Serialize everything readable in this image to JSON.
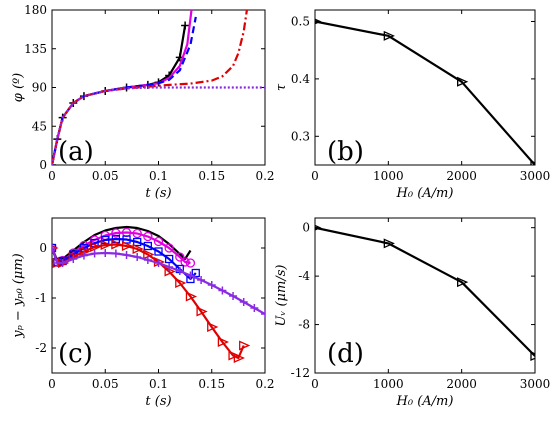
{
  "chart_data": [
    {
      "panel": "a",
      "type": "line",
      "panel_label": "(a)",
      "xlabel": "t (s)",
      "ylabel": "φ (º)",
      "xlim": [
        0,
        0.2
      ],
      "ylim": [
        0,
        180
      ],
      "xticks": [
        "0",
        "0.05",
        "0.1",
        "0.15",
        "0.2"
      ],
      "yticks": [
        "0",
        "45",
        "90",
        "135",
        "180"
      ],
      "series": [
        {
          "style": "solid",
          "color": "#000000",
          "marker": "+",
          "x": [
            0,
            0.005,
            0.01,
            0.02,
            0.03,
            0.05,
            0.07,
            0.09,
            0.1,
            0.11,
            0.12,
            0.125
          ],
          "y": [
            0,
            30,
            55,
            72,
            80,
            86,
            90,
            93,
            96,
            104,
            125,
            162
          ]
        },
        {
          "style": "solid",
          "color": "#e000e0",
          "x": [
            0,
            0.005,
            0.01,
            0.02,
            0.03,
            0.05,
            0.07,
            0.09,
            0.1,
            0.11,
            0.12,
            0.127,
            0.131
          ],
          "y": [
            0,
            30,
            55,
            72,
            80,
            86,
            90,
            93,
            95,
            101,
            115,
            140,
            180
          ]
        },
        {
          "style": "dashed",
          "color": "#0000ff",
          "x": [
            0,
            0.005,
            0.01,
            0.02,
            0.03,
            0.05,
            0.07,
            0.09,
            0.1,
            0.11,
            0.12,
            0.13,
            0.135
          ],
          "y": [
            0,
            30,
            55,
            72,
            80,
            86,
            90,
            93,
            95,
            99,
            110,
            140,
            172
          ]
        },
        {
          "style": "dashdot",
          "color": "#e00000",
          "x": [
            0,
            0.005,
            0.01,
            0.02,
            0.03,
            0.05,
            0.07,
            0.09,
            0.11,
            0.13,
            0.15,
            0.16,
            0.17,
            0.175,
            0.18,
            0.183
          ],
          "y": [
            0,
            30,
            55,
            72,
            80,
            86,
            89,
            91,
            93,
            94.5,
            98,
            103,
            115,
            130,
            155,
            180
          ]
        },
        {
          "style": "dotted",
          "color": "#8a2be2",
          "x": [
            0,
            0.005,
            0.01,
            0.02,
            0.03,
            0.05,
            0.07,
            0.09,
            0.1,
            0.15,
            0.2
          ],
          "y": [
            0,
            30,
            55,
            72,
            80,
            86,
            89,
            90,
            90,
            90,
            90
          ]
        }
      ]
    },
    {
      "panel": "b",
      "type": "line",
      "panel_label": "(b)",
      "xlabel": "H₀ (A/m)",
      "ylabel": "τ",
      "xlim": [
        0,
        3000
      ],
      "ylim": [
        0.25,
        0.52
      ],
      "xticks": [
        "0",
        "1000",
        "2000",
        "3000"
      ],
      "yticks": [
        "0.3",
        "0.4",
        "0.5"
      ],
      "series": [
        {
          "color": "#000000",
          "marker": "triangle-right",
          "x": [
            0,
            1000,
            2000,
            3000
          ],
          "y": [
            0.5,
            0.475,
            0.395,
            0.25
          ]
        }
      ]
    },
    {
      "panel": "c",
      "type": "line",
      "panel_label": "(c)",
      "xlabel": "t (s)",
      "ylabel": "yₚ − yₚ₀ (μm)",
      "xlim": [
        0,
        0.2
      ],
      "ylim": [
        -2.5,
        0.6
      ],
      "xticks": [
        "0",
        "0.05",
        "0.1",
        "0.15",
        "0.2"
      ],
      "yticks": [
        "0",
        "-1",
        "-2"
      ],
      "series": [
        {
          "color": "#000000",
          "x": [
            0,
            0.005,
            0.01,
            0.02,
            0.03,
            0.04,
            0.05,
            0.06,
            0.07,
            0.08,
            0.09,
            0.1,
            0.11,
            0.12,
            0.125,
            0.13
          ],
          "y": [
            0,
            -0.25,
            -0.22,
            -0.05,
            0.12,
            0.26,
            0.35,
            0.4,
            0.42,
            0.4,
            0.34,
            0.24,
            0.08,
            -0.12,
            -0.22,
            -0.05
          ]
        },
        {
          "color": "#e000e0",
          "marker": "circle",
          "x": [
            0,
            0.005,
            0.01,
            0.02,
            0.03,
            0.04,
            0.05,
            0.06,
            0.07,
            0.08,
            0.09,
            0.1,
            0.11,
            0.12,
            0.125,
            0.13
          ],
          "y": [
            0,
            -0.28,
            -0.25,
            -0.1,
            0.05,
            0.16,
            0.25,
            0.3,
            0.31,
            0.29,
            0.23,
            0.13,
            0.0,
            -0.18,
            -0.28,
            -0.3
          ]
        },
        {
          "color": "#0000ff",
          "marker": "square",
          "x": [
            0,
            0.005,
            0.01,
            0.02,
            0.03,
            0.04,
            0.05,
            0.06,
            0.07,
            0.08,
            0.09,
            0.1,
            0.11,
            0.12,
            0.13,
            0.135
          ],
          "y": [
            0,
            -0.28,
            -0.26,
            -0.13,
            0.0,
            0.1,
            0.16,
            0.18,
            0.17,
            0.12,
            0.04,
            -0.07,
            -0.22,
            -0.42,
            -0.62,
            -0.5
          ]
        },
        {
          "color": "#e00000",
          "marker": "triangle-right",
          "x": [
            0,
            0.005,
            0.01,
            0.02,
            0.03,
            0.04,
            0.05,
            0.06,
            0.07,
            0.08,
            0.09,
            0.1,
            0.11,
            0.12,
            0.13,
            0.14,
            0.15,
            0.16,
            0.17,
            0.175,
            0.18
          ],
          "y": [
            0,
            -0.3,
            -0.3,
            -0.18,
            -0.07,
            0.02,
            0.06,
            0.07,
            0.04,
            -0.02,
            -0.13,
            -0.28,
            -0.47,
            -0.7,
            -0.97,
            -1.27,
            -1.58,
            -1.88,
            -2.15,
            -2.2,
            -1.95
          ]
        },
        {
          "color": "#8a2be2",
          "marker": "+",
          "x": [
            0,
            0.005,
            0.01,
            0.02,
            0.03,
            0.04,
            0.05,
            0.06,
            0.07,
            0.08,
            0.09,
            0.1,
            0.11,
            0.12,
            0.13,
            0.14,
            0.15,
            0.16,
            0.17,
            0.18,
            0.19,
            0.2
          ],
          "y": [
            0,
            -0.3,
            -0.3,
            -0.22,
            -0.15,
            -0.11,
            -0.1,
            -0.11,
            -0.14,
            -0.18,
            -0.24,
            -0.3,
            -0.38,
            -0.46,
            -0.55,
            -0.64,
            -0.74,
            -0.85,
            -0.96,
            -1.08,
            -1.2,
            -1.32
          ]
        }
      ]
    },
    {
      "panel": "d",
      "type": "line",
      "panel_label": "(d)",
      "xlabel": "H₀ (A/m)",
      "ylabel": "Uᵥ (μm/s)",
      "xlim": [
        0,
        3000
      ],
      "ylim": [
        -12,
        0.8
      ],
      "xticks": [
        "0",
        "1000",
        "2000",
        "3000"
      ],
      "yticks": [
        "0",
        "-4",
        "-8",
        "-12"
      ],
      "series": [
        {
          "color": "#000000",
          "marker": "triangle-right",
          "x": [
            0,
            1000,
            2000,
            3000
          ],
          "y": [
            0,
            -1.3,
            -4.5,
            -10.6
          ]
        }
      ]
    }
  ]
}
